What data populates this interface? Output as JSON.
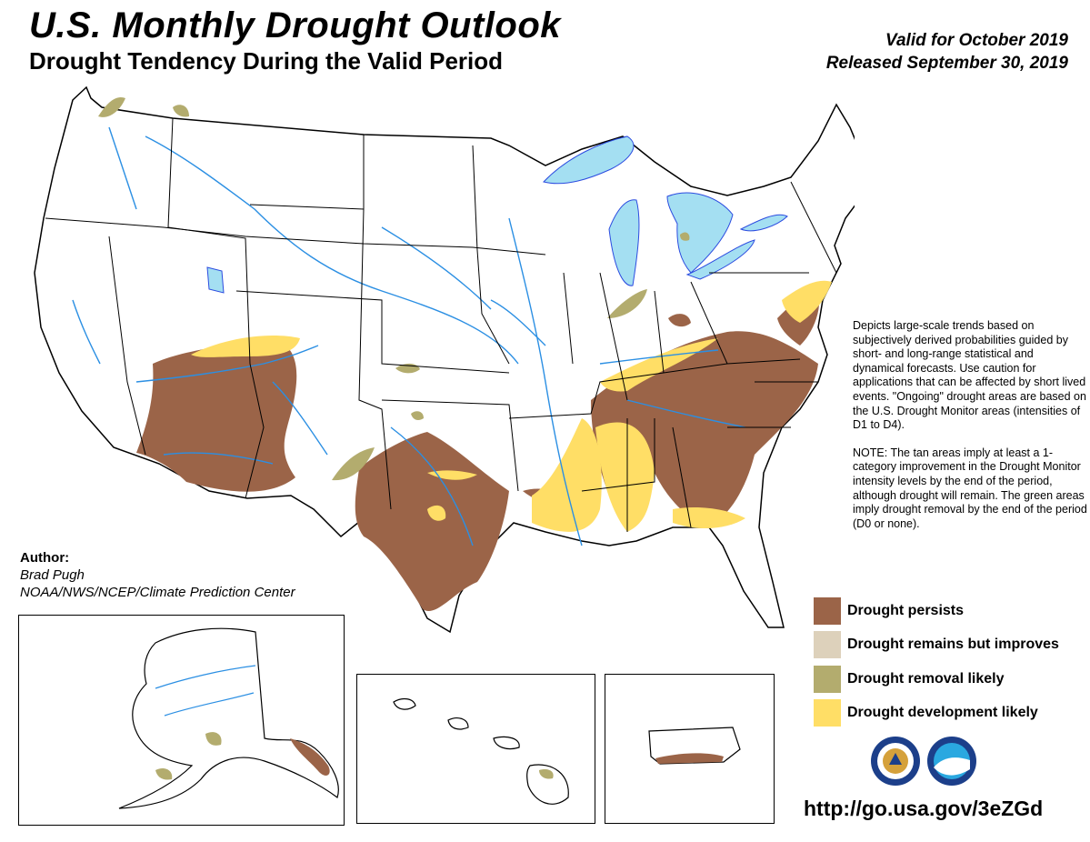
{
  "header": {
    "title": "U.S. Monthly Drought Outlook",
    "subtitle": "Drought Tendency During the Valid Period",
    "valid": "Valid for October 2019",
    "released": "Released September 30, 2019"
  },
  "description": {
    "para1": "Depicts large-scale trends based on subjectively derived probabilities guided by short- and long-range statistical and dynamical forecasts. Use caution for applications that can be affected by short lived events. \"Ongoing\" drought areas are based on the U.S. Drought Monitor areas (intensities of D1 to D4).",
    "para2": "NOTE: The tan areas imply at least a 1-category improvement in the Drought Monitor intensity levels by the end of the period, although drought will remain. The green areas imply drought removal by the end of the period (D0 or none)."
  },
  "author": {
    "heading": "Author:",
    "name": "Brad Pugh",
    "org": "NOAA/NWS/NCEP/Climate Prediction Center"
  },
  "legend": [
    {
      "label": "Drought persists",
      "color": "#9b6448"
    },
    {
      "label": "Drought remains but improves",
      "color": "#ddd1bb"
    },
    {
      "label": "Drought removal likely",
      "color": "#b3ac6e"
    },
    {
      "label": "Drought development likely",
      "color": "#ffde66"
    }
  ],
  "colors": {
    "water": "#a4dff2",
    "rivers": "#2b8fe3",
    "borders": "#000000"
  },
  "icons": [
    "doc-seal-icon",
    "noaa-logo-icon"
  ],
  "footer": {
    "url": "http://go.usa.gov/3eZGd"
  }
}
